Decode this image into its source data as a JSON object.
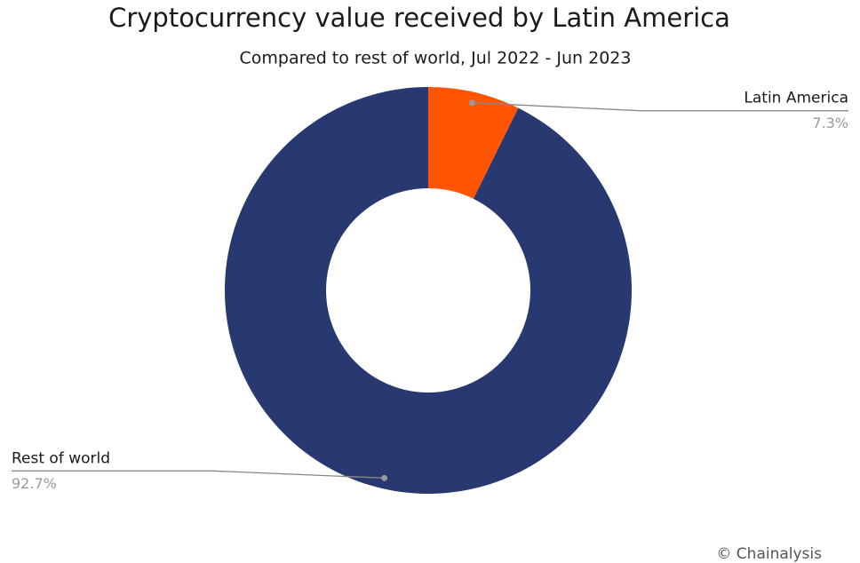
{
  "chart_data": {
    "type": "pie",
    "title": "Cryptocurrency value received by Latin America",
    "subtitle": "Compared to rest of world, Jul 2022 - Jun 2023",
    "categories": [
      "Latin America",
      "Rest of world"
    ],
    "values": [
      7.3,
      92.7
    ],
    "value_labels": [
      "7.3%",
      "92.7%"
    ],
    "colors": [
      "#ff5500",
      "#283870"
    ],
    "donut": true,
    "source": "© Chainalysis"
  }
}
